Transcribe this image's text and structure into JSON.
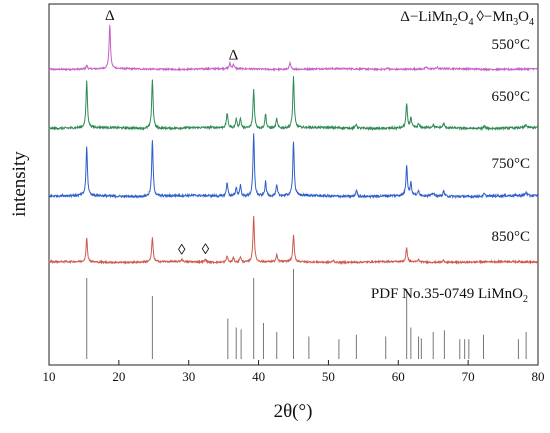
{
  "chart_data": {
    "type": "line",
    "title": "",
    "xlabel": "2θ(°)",
    "ylabel": "intensity",
    "xlim": [
      10,
      80
    ],
    "xticks": [
      10,
      20,
      30,
      40,
      50,
      60,
      70,
      80
    ],
    "y_ticks_shown": false,
    "grid": false,
    "legend": {
      "position": "top-right",
      "markers": [
        {
          "symbol": "Δ",
          "phase_text": "−LiMn",
          "sub1": "2",
          "mid": "O",
          "sub2": "4"
        },
        {
          "symbol": "◊",
          "phase_text": "−Mn",
          "sub1": "3",
          "mid": "O",
          "sub2": "4"
        }
      ]
    },
    "series": [
      {
        "name": "550°C",
        "color": "#c45fc8",
        "peaks": [
          {
            "x": 15.4,
            "h": 0.08
          },
          {
            "x": 18.7,
            "h": 1.0
          },
          {
            "x": 35.9,
            "h": 0.12
          },
          {
            "x": 36.4,
            "h": 0.1
          },
          {
            "x": 44.5,
            "h": 0.14
          },
          {
            "x": 58.5,
            "h": 0.04
          },
          {
            "x": 64.0,
            "h": 0.04
          },
          {
            "x": 65.6,
            "h": 0.03
          }
        ],
        "annotations": [
          {
            "symbol": "Δ",
            "x": 18.7
          },
          {
            "symbol": "Δ",
            "x": 36.4
          }
        ]
      },
      {
        "name": "650°C",
        "color": "#2f8a55",
        "peaks": [
          {
            "x": 15.4,
            "h": 0.78
          },
          {
            "x": 24.8,
            "h": 0.82
          },
          {
            "x": 35.5,
            "h": 0.25
          },
          {
            "x": 36.8,
            "h": 0.15
          },
          {
            "x": 37.4,
            "h": 0.16
          },
          {
            "x": 39.3,
            "h": 0.65
          },
          {
            "x": 41.0,
            "h": 0.24
          },
          {
            "x": 42.6,
            "h": 0.16
          },
          {
            "x": 45.0,
            "h": 0.85
          },
          {
            "x": 54.0,
            "h": 0.07
          },
          {
            "x": 61.2,
            "h": 0.4
          },
          {
            "x": 61.8,
            "h": 0.16
          },
          {
            "x": 62.9,
            "h": 0.06
          },
          {
            "x": 65.0,
            "h": 0.05
          },
          {
            "x": 66.5,
            "h": 0.07
          },
          {
            "x": 72.3,
            "h": 0.04
          },
          {
            "x": 78.3,
            "h": 0.05
          }
        ]
      },
      {
        "name": "750°C",
        "color": "#2f5fc8",
        "peaks": [
          {
            "x": 15.4,
            "h": 0.75
          },
          {
            "x": 24.8,
            "h": 0.86
          },
          {
            "x": 35.5,
            "h": 0.22
          },
          {
            "x": 36.8,
            "h": 0.14
          },
          {
            "x": 37.4,
            "h": 0.17
          },
          {
            "x": 39.3,
            "h": 0.96
          },
          {
            "x": 41.0,
            "h": 0.22
          },
          {
            "x": 42.6,
            "h": 0.16
          },
          {
            "x": 45.0,
            "h": 0.84
          },
          {
            "x": 54.0,
            "h": 0.1
          },
          {
            "x": 61.2,
            "h": 0.47
          },
          {
            "x": 61.8,
            "h": 0.2
          },
          {
            "x": 62.9,
            "h": 0.07
          },
          {
            "x": 65.0,
            "h": 0.05
          },
          {
            "x": 66.5,
            "h": 0.08
          },
          {
            "x": 72.3,
            "h": 0.04
          },
          {
            "x": 78.3,
            "h": 0.05
          }
        ]
      },
      {
        "name": "850°C",
        "color": "#cc5a4e",
        "peaks": [
          {
            "x": 15.4,
            "h": 0.5
          },
          {
            "x": 24.8,
            "h": 0.52
          },
          {
            "x": 29.0,
            "h": 0.05
          },
          {
            "x": 32.4,
            "h": 0.06
          },
          {
            "x": 35.5,
            "h": 0.14
          },
          {
            "x": 36.4,
            "h": 0.1
          },
          {
            "x": 37.4,
            "h": 0.12
          },
          {
            "x": 39.3,
            "h": 0.98
          },
          {
            "x": 42.6,
            "h": 0.14
          },
          {
            "x": 45.0,
            "h": 0.56
          },
          {
            "x": 50.7,
            "h": 0.05
          },
          {
            "x": 61.2,
            "h": 0.3
          },
          {
            "x": 62.9,
            "h": 0.05
          },
          {
            "x": 66.5,
            "h": 0.05
          }
        ],
        "annotations": [
          {
            "symbol": "◊",
            "x": 29.0
          },
          {
            "symbol": "◊",
            "x": 32.4
          }
        ]
      }
    ],
    "reference": {
      "label": "PDF No.35-0749 LiMnO",
      "label_sub": "2",
      "color": "#777777",
      "lines": [
        {
          "x": 15.4,
          "h": 0.9
        },
        {
          "x": 24.8,
          "h": 0.7
        },
        {
          "x": 35.6,
          "h": 0.45
        },
        {
          "x": 36.8,
          "h": 0.35
        },
        {
          "x": 37.5,
          "h": 0.33
        },
        {
          "x": 39.3,
          "h": 0.9
        },
        {
          "x": 40.7,
          "h": 0.4
        },
        {
          "x": 42.6,
          "h": 0.3
        },
        {
          "x": 45.0,
          "h": 1.0
        },
        {
          "x": 47.2,
          "h": 0.25
        },
        {
          "x": 51.5,
          "h": 0.22
        },
        {
          "x": 54.0,
          "h": 0.27
        },
        {
          "x": 58.2,
          "h": 0.25
        },
        {
          "x": 61.2,
          "h": 0.78
        },
        {
          "x": 61.8,
          "h": 0.35
        },
        {
          "x": 62.9,
          "h": 0.25
        },
        {
          "x": 63.3,
          "h": 0.23
        },
        {
          "x": 65.0,
          "h": 0.3
        },
        {
          "x": 66.6,
          "h": 0.32
        },
        {
          "x": 68.8,
          "h": 0.22
        },
        {
          "x": 69.5,
          "h": 0.22
        },
        {
          "x": 70.1,
          "h": 0.22
        },
        {
          "x": 72.2,
          "h": 0.27
        },
        {
          "x": 77.2,
          "h": 0.22
        },
        {
          "x": 78.3,
          "h": 0.3
        }
      ]
    }
  }
}
